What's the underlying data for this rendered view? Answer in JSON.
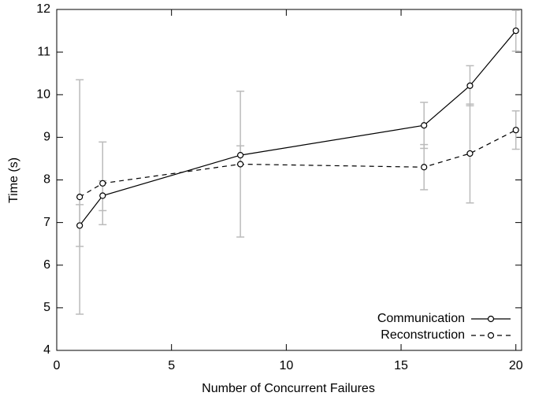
{
  "chart_data": {
    "type": "line",
    "xlabel": "Number of Concurrent Failures",
    "ylabel": "Time (s)",
    "x": [
      1,
      2,
      8,
      16,
      18,
      20
    ],
    "series": [
      {
        "name": "Communication",
        "color": "#000000",
        "dash": "solid",
        "values": [
          6.93,
          7.63,
          8.58,
          9.28,
          10.21,
          11.5
        ],
        "errors": [
          0.49,
          0.35,
          0.22,
          0.54,
          0.47,
          0.48
        ]
      },
      {
        "name": "Reconstruction",
        "color": "#000000",
        "dash": "dashed",
        "values": [
          7.6,
          7.92,
          8.37,
          8.3,
          8.62,
          9.17
        ],
        "errors": [
          2.75,
          0.97,
          1.71,
          0.53,
          1.16,
          0.45
        ]
      }
    ],
    "error_color": "#bbbbbb",
    "xlim": [
      0,
      20.25
    ],
    "xticks": [
      0,
      5,
      10,
      15,
      20
    ],
    "ylim": [
      4,
      12
    ],
    "yticks": [
      4,
      5,
      6,
      7,
      8,
      9,
      10,
      11,
      12
    ],
    "grid": false,
    "legend": "lower right"
  }
}
